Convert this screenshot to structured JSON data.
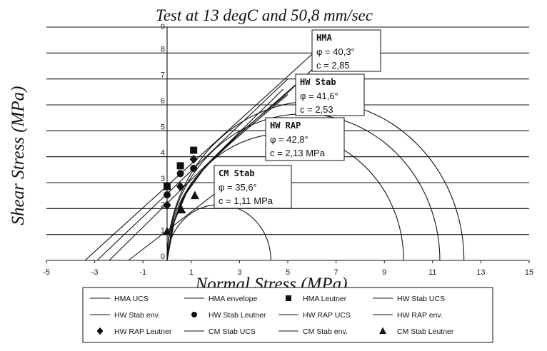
{
  "chart_data": {
    "type": "scatter",
    "title": "Test at 13 degC and 50,8 mm/sec",
    "xlabel": "Normal Stress (MPa)",
    "ylabel": "Shear Stress (MPa)",
    "xlim": [
      -5,
      15
    ],
    "ylim": [
      0,
      9
    ],
    "x_ticks": [
      -5,
      -3,
      -1,
      1,
      3,
      5,
      7,
      9,
      11,
      13,
      15
    ],
    "y_ticks": [
      0,
      1,
      2,
      3,
      4,
      5,
      6,
      7,
      8,
      9
    ],
    "x_tick_labels": [
      "-5",
      "-3",
      "-1",
      "1",
      "3",
      "5",
      "7",
      "9",
      "11",
      "13",
      "15"
    ],
    "y_tick_labels": [
      "0",
      "1",
      "2",
      "3",
      "4",
      "5",
      "6",
      "7",
      "8",
      "9"
    ],
    "grid": "horizontal",
    "legend_position": "bottom",
    "circles": [
      {
        "name": "HMA UCS",
        "x_min": 0,
        "x_max": 12.3
      },
      {
        "name": "HW Stab UCS",
        "x_min": 0,
        "x_max": 11.3
      },
      {
        "name": "HW RAP UCS",
        "x_min": 0,
        "x_max": 9.8
      },
      {
        "name": "CM Stab UCS",
        "x_min": 0,
        "x_max": 4.3
      }
    ],
    "envelopes": [
      {
        "name": "HMA envelope",
        "x": [
          -3.4,
          6.0
        ],
        "y": [
          0,
          7.95
        ]
      },
      {
        "name": "HW Stab env.",
        "x": [
          -2.9,
          5.0
        ],
        "y": [
          0,
          7.0
        ]
      },
      {
        "name": "HW RAP env.",
        "x": [
          -2.4,
          4.8
        ],
        "y": [
          0,
          6.6
        ]
      },
      {
        "name": "CM Stab env.",
        "x": [
          -1.6,
          2.5
        ],
        "y": [
          0,
          2.95
        ]
      }
    ],
    "envelope_arcs": [
      {
        "x": [
          0.0,
          0.2,
          0.6,
          1.1,
          1.8,
          2.6,
          3.6,
          5.0
        ],
        "y": [
          0.0,
          1.3,
          2.3,
          3.1,
          3.8,
          4.5,
          5.3,
          6.4
        ]
      },
      {
        "x": [
          0.0,
          0.25,
          0.7,
          1.3,
          2.0,
          2.9,
          4.0,
          5.6
        ],
        "y": [
          0.0,
          1.4,
          2.45,
          3.3,
          4.0,
          4.8,
          5.7,
          7.0
        ]
      },
      {
        "x": [
          0.0,
          0.3,
          0.8,
          1.5,
          2.4,
          3.5,
          4.8,
          6.4
        ],
        "y": [
          0.0,
          1.5,
          2.6,
          3.5,
          4.4,
          5.3,
          6.3,
          7.7
        ]
      }
    ],
    "series": [
      {
        "name": "HMA Leutner",
        "marker": "square",
        "x": [
          0,
          0.55,
          1.1
        ],
        "y": [
          2.85,
          3.65,
          4.25
        ]
      },
      {
        "name": "HW Stab Leutner",
        "marker": "circle",
        "x": [
          0,
          0.55,
          1.1
        ],
        "y": [
          2.53,
          3.35,
          3.55
        ]
      },
      {
        "name": "HW RAP Leutner",
        "marker": "diamond",
        "x": [
          0,
          0.55,
          1.1
        ],
        "y": [
          2.13,
          2.85,
          3.9
        ]
      },
      {
        "name": "CM Stab Leutner",
        "marker": "triangle",
        "x": [
          0,
          0.6,
          1.15
        ],
        "y": [
          1.11,
          1.95,
          2.5
        ]
      }
    ],
    "annotations": [
      {
        "label": "HMA",
        "phi": "φ = 40,3°",
        "c": "c = 2,85"
      },
      {
        "label": "HW Stab",
        "phi": "φ = 41,6°",
        "c": "c = 2,53"
      },
      {
        "label": "HW RAP",
        "phi": "φ = 42,8°",
        "c": "c = 2,13 MPa"
      },
      {
        "label": "CM Stab",
        "phi": "φ = 35,6°",
        "c": "c = 1,11 MPa"
      }
    ],
    "legend": [
      {
        "label": "HMA UCS",
        "symbol": "line"
      },
      {
        "label": "HMA envelope",
        "symbol": "line"
      },
      {
        "label": "HMA Leutner",
        "symbol": "square"
      },
      {
        "label": "HW Stab UCS",
        "symbol": "line"
      },
      {
        "label": "HW Stab env.",
        "symbol": "line"
      },
      {
        "label": "HW Stab Leutner",
        "symbol": "circle"
      },
      {
        "label": "HW RAP UCS",
        "symbol": "line"
      },
      {
        "label": "HW RAP env.",
        "symbol": "line"
      },
      {
        "label": "HW RAP Leutner",
        "symbol": "diamond"
      },
      {
        "label": "CM Stab UCS",
        "symbol": "line"
      },
      {
        "label": "CM Stab env.",
        "symbol": "line"
      },
      {
        "label": "CM Stab Leutner",
        "symbol": "triangle"
      }
    ]
  }
}
